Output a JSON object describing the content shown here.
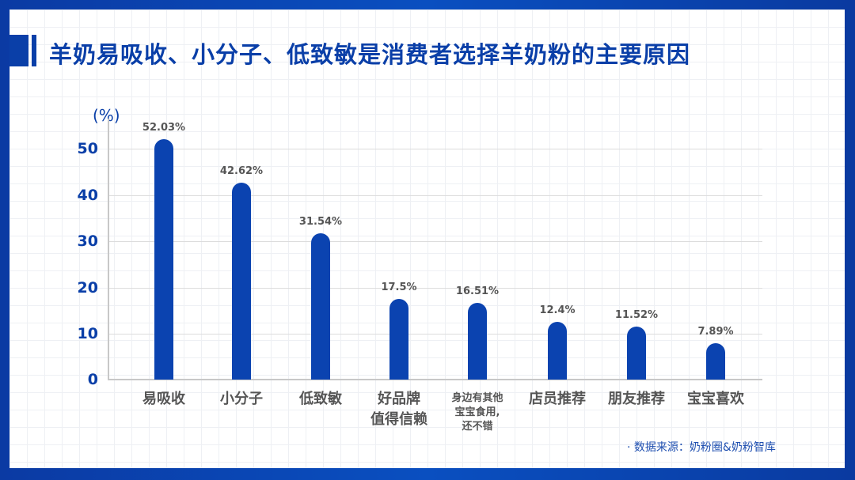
{
  "title": "羊奶易吸收、小分子、低致敏是消费者选择羊奶粉的主要原因",
  "source": "· 数据来源：奶粉圈&奶粉智库",
  "colors": {
    "accent": "#0b43b0",
    "frame": "#0a3fa8",
    "label": "#555555"
  },
  "chart_data": {
    "type": "bar",
    "title": "羊奶易吸收、小分子、低致敏是消费者选择羊奶粉的主要原因",
    "ylabel": "(%)",
    "xlabel": "",
    "ylim": [
      0,
      55
    ],
    "yticks": [
      0,
      10,
      20,
      30,
      40,
      50
    ],
    "grid": true,
    "categories": [
      "易吸收",
      "小分子",
      "低致敏",
      "好品牌 值得信赖",
      "身边有其他 宝宝食用, 还不错",
      "店员推荐",
      "朋友推荐",
      "宝宝喜欢"
    ],
    "values": [
      52.03,
      42.62,
      31.54,
      17.5,
      16.51,
      12.4,
      11.52,
      7.89
    ],
    "value_labels": [
      "52.03%",
      "42.62%",
      "31.54%",
      "17.5%",
      "16.51%",
      "12.4%",
      "11.52%",
      "7.89%"
    ]
  },
  "axis": {
    "unit": "(%)",
    "ticks": [
      "50",
      "40",
      "30",
      "20",
      "10",
      "0"
    ]
  },
  "categories": [
    {
      "lines": [
        "易吸收"
      ]
    },
    {
      "lines": [
        "小分子"
      ]
    },
    {
      "lines": [
        "低致敏"
      ]
    },
    {
      "lines": [
        "好品牌",
        "值得信赖"
      ]
    },
    {
      "lines": [
        "身边有其他",
        "宝宝食用,",
        "还不错"
      ]
    },
    {
      "lines": [
        "店员推荐"
      ]
    },
    {
      "lines": [
        "朋友推荐"
      ]
    },
    {
      "lines": [
        "宝宝喜欢"
      ]
    }
  ]
}
